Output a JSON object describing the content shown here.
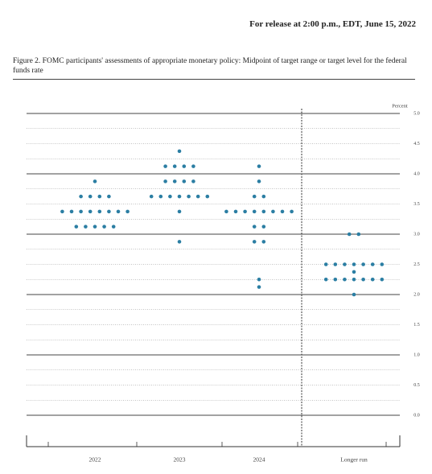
{
  "release": "For release at 2:00 p.m., EDT, June 15, 2022",
  "chart_data": {
    "type": "dot",
    "title": "Figure 2. FOMC participants' assessments of appropriate monetary policy: Midpoint of target range or target level for the federal funds rate",
    "y_label": "Percent",
    "categories": [
      "2022",
      "2023",
      "2024",
      "Longer run"
    ],
    "values": [
      [
        3.875,
        3.625,
        3.625,
        3.625,
        3.625,
        3.375,
        3.375,
        3.375,
        3.375,
        3.375,
        3.375,
        3.375,
        3.375,
        3.125,
        3.125,
        3.125,
        3.125,
        3.125
      ],
      [
        4.375,
        4.125,
        4.125,
        4.125,
        4.125,
        3.875,
        3.875,
        3.875,
        3.875,
        3.625,
        3.625,
        3.625,
        3.625,
        3.625,
        3.625,
        3.625,
        3.375,
        2.875
      ],
      [
        4.125,
        3.875,
        3.625,
        3.625,
        3.375,
        3.375,
        3.375,
        3.375,
        3.375,
        3.375,
        3.375,
        3.375,
        3.125,
        3.125,
        2.875,
        2.875,
        2.25,
        2.125
      ],
      [
        3.0,
        3.0,
        2.5,
        2.5,
        2.5,
        2.5,
        2.5,
        2.5,
        2.5,
        2.375,
        2.25,
        2.25,
        2.25,
        2.25,
        2.25,
        2.25,
        2.25,
        2.0
      ]
    ],
    "color": "#2b7ea3",
    "ylim": [
      0,
      5
    ],
    "yticks": [
      {
        "value": 0,
        "label": "0.0"
      },
      0.5,
      {
        "value": 1,
        "label": "1.0"
      },
      1.5,
      {
        "value": 2,
        "label": "2.0"
      },
      2.5,
      {
        "value": 3,
        "label": "3.0"
      },
      3.5,
      {
        "value": 4,
        "label": "4.0"
      },
      4.5,
      {
        "value": 5,
        "label": "5.0"
      }
    ],
    "grid": true
  }
}
